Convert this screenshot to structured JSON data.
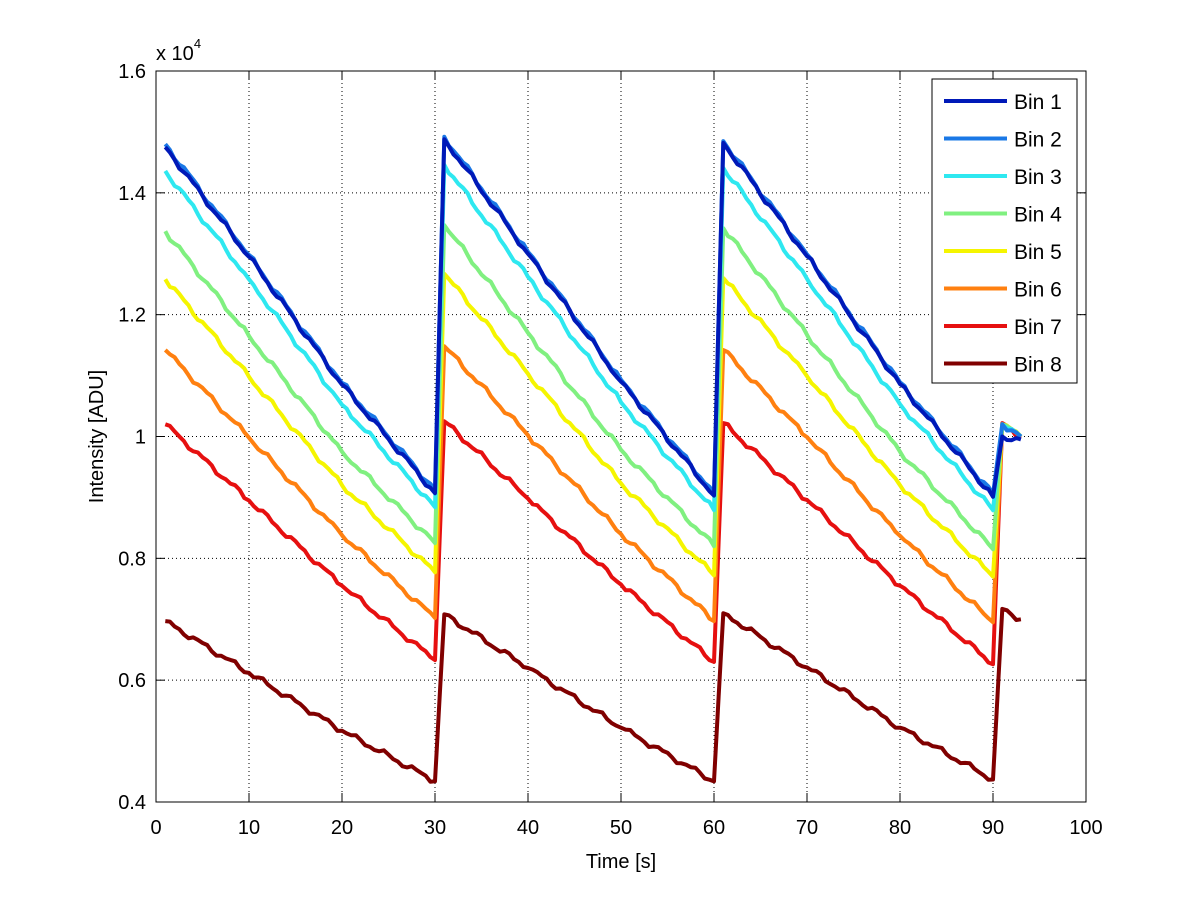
{
  "chart_data": {
    "type": "line",
    "title": "",
    "xlabel": "Time [s]",
    "ylabel": "Intensity [ADU]",
    "y_exponent_label": "x 10",
    "y_exponent_power": "4",
    "xlim": [
      0,
      100
    ],
    "ylim": [
      0.4,
      1.6
    ],
    "xticks": [
      "0",
      "10",
      "20",
      "30",
      "40",
      "50",
      "60",
      "70",
      "80",
      "90",
      "100"
    ],
    "yticks": [
      "0.4",
      "0.6",
      "0.8",
      "1",
      "1.2",
      "1.4",
      "1.6"
    ],
    "xtick_values": [
      0,
      10,
      20,
      30,
      40,
      50,
      60,
      70,
      80,
      90,
      100
    ],
    "ytick_values": [
      0.4,
      0.6,
      0.8,
      1.0,
      1.2,
      1.4,
      1.6
    ],
    "grid": true,
    "legend_position": "top-right",
    "x": [
      1,
      10,
      20,
      30,
      31,
      40,
      50,
      60,
      61,
      70,
      80,
      90,
      91,
      93
    ],
    "series": [
      {
        "name": "Bin 1",
        "color": "#0019b8",
        "values": [
          1.475,
          1.295,
          1.085,
          0.907,
          1.488,
          1.3,
          1.09,
          0.903,
          1.482,
          1.296,
          1.086,
          0.901,
          1.0,
          0.995
        ]
      },
      {
        "name": "Bin 2",
        "color": "#1a78e6",
        "values": [
          1.48,
          1.298,
          1.088,
          0.912,
          1.492,
          1.303,
          1.093,
          0.907,
          1.485,
          1.299,
          1.089,
          0.905,
          1.02,
          1.0
        ]
      },
      {
        "name": "Bin 3",
        "color": "#2ee8f0",
        "values": [
          1.436,
          1.258,
          1.052,
          0.884,
          1.446,
          1.262,
          1.056,
          0.879,
          1.441,
          1.259,
          1.053,
          0.879,
          1.02,
          1.0
        ]
      },
      {
        "name": "Bin 4",
        "color": "#80f080",
        "values": [
          1.337,
          1.165,
          0.975,
          0.825,
          1.347,
          1.17,
          0.978,
          0.82,
          1.342,
          1.167,
          0.975,
          0.815,
          1.02,
          1.0
        ]
      },
      {
        "name": "Bin 5",
        "color": "#f5f500",
        "values": [
          1.258,
          1.098,
          0.92,
          0.777,
          1.267,
          1.103,
          0.923,
          0.772,
          1.26,
          1.099,
          0.92,
          0.77,
          1.02,
          1.0
        ]
      },
      {
        "name": "Bin 6",
        "color": "#ff8010",
        "values": [
          1.142,
          0.998,
          0.838,
          0.702,
          1.148,
          1.002,
          0.84,
          0.697,
          1.142,
          0.999,
          0.837,
          0.695,
          1.02,
          1.0
        ]
      },
      {
        "name": "Bin 7",
        "color": "#e61010",
        "values": [
          1.02,
          0.895,
          0.755,
          0.633,
          1.025,
          0.898,
          0.757,
          0.63,
          1.022,
          0.896,
          0.755,
          0.626,
          1.022,
          0.997
        ]
      },
      {
        "name": "Bin 8",
        "color": "#800000",
        "values": [
          0.697,
          0.612,
          0.517,
          0.434,
          0.708,
          0.62,
          0.522,
          0.434,
          0.71,
          0.621,
          0.522,
          0.437,
          0.717,
          0.7
        ]
      }
    ]
  }
}
